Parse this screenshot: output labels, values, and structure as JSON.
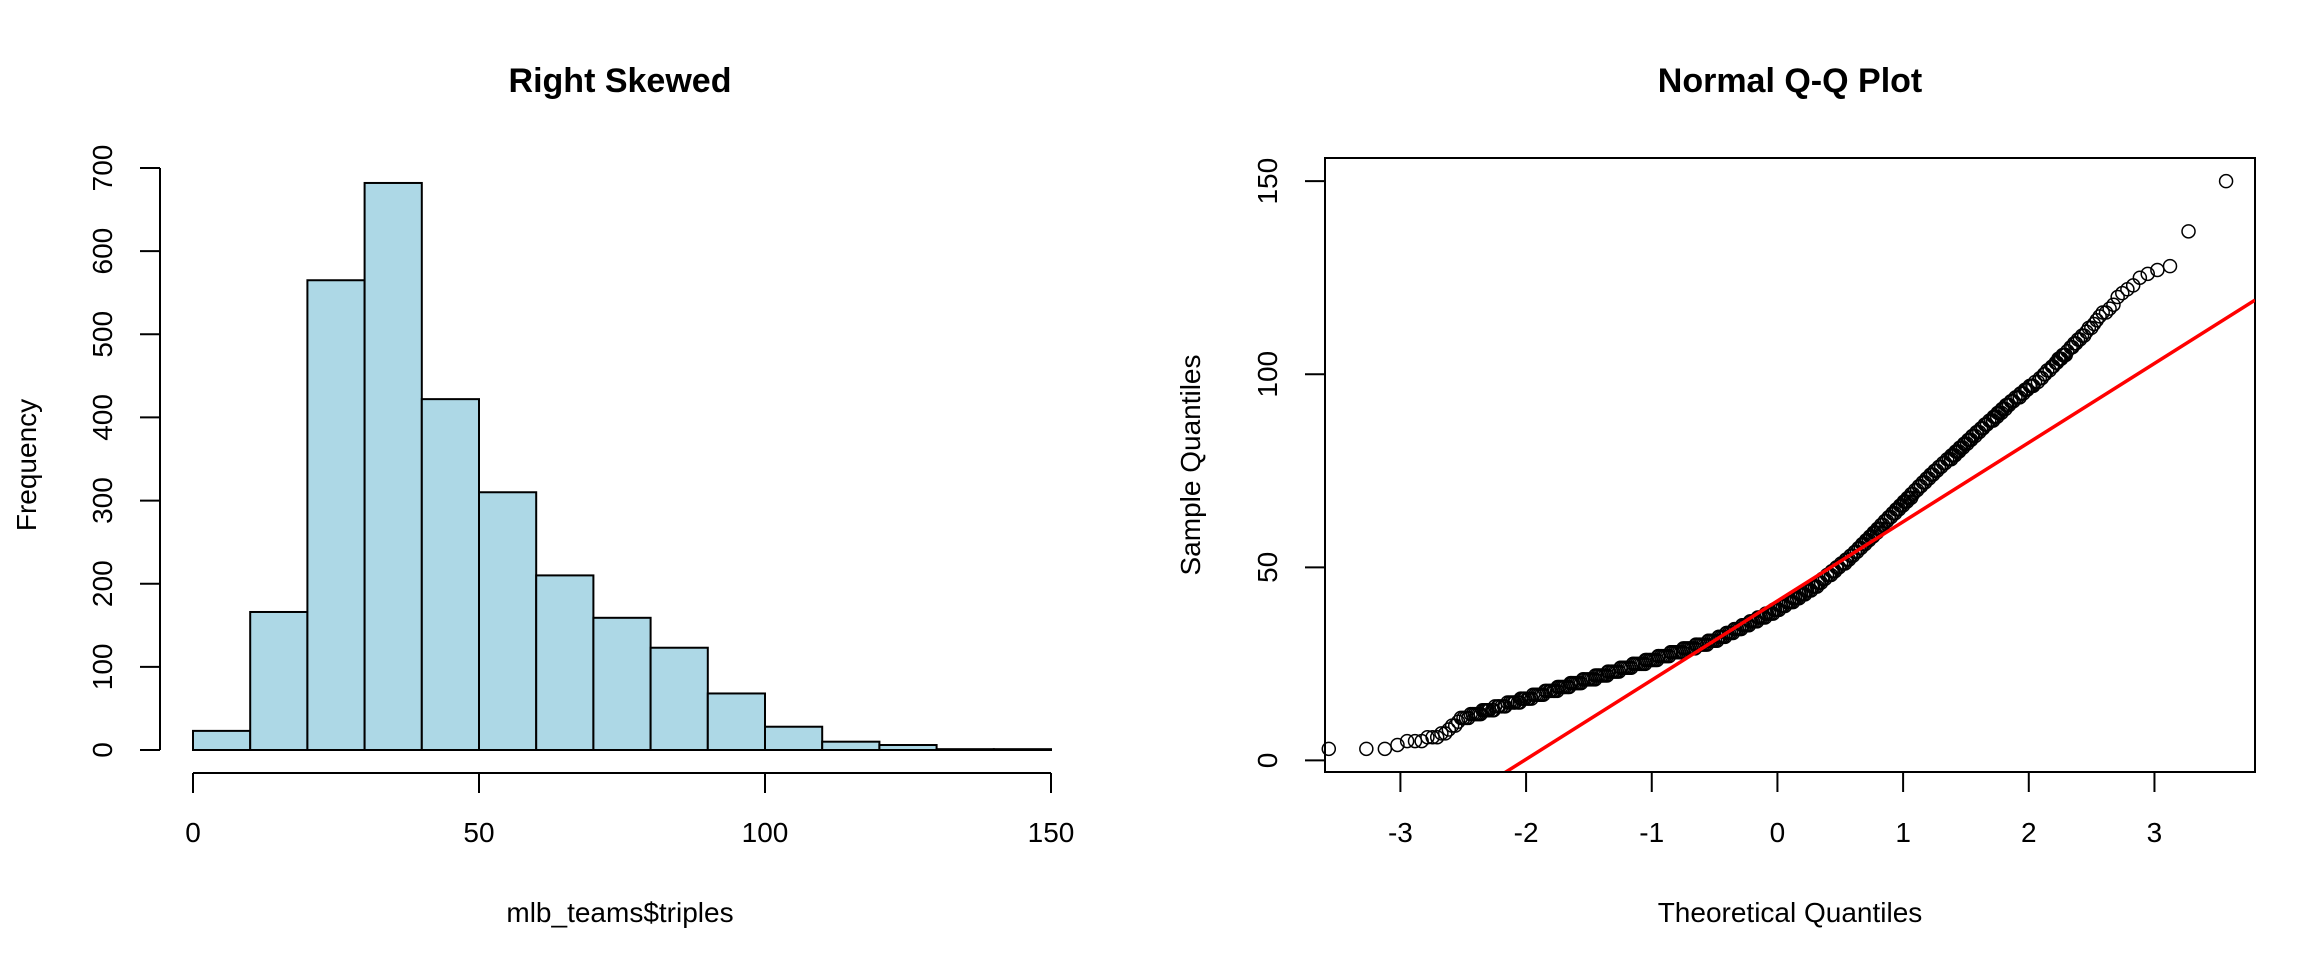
{
  "chart_data": [
    {
      "type": "bar",
      "title": "Right Skewed",
      "xlabel": "mlb_teams$triples",
      "ylabel": "Frequency",
      "bin_edges": [
        0,
        10,
        20,
        30,
        40,
        50,
        60,
        70,
        80,
        90,
        100,
        110,
        120,
        130,
        140,
        150
      ],
      "values": [
        23,
        166,
        565,
        682,
        422,
        310,
        210,
        159,
        123,
        68,
        28,
        10,
        6,
        1,
        1
      ],
      "xlim": [
        0,
        150
      ],
      "ylim": [
        0,
        700
      ],
      "x_ticks": [
        0,
        50,
        100,
        150
      ],
      "y_ticks": [
        0,
        100,
        200,
        300,
        400,
        500,
        600,
        700
      ],
      "bar_fill": "#ADD8E6",
      "bar_stroke": "#000000"
    },
    {
      "type": "scatter",
      "title": "Normal Q-Q Plot",
      "xlabel": "Theoretical Quantiles",
      "ylabel": "Sample Quantiles",
      "xlim": [
        -3.6,
        3.8
      ],
      "ylim": [
        -3,
        156
      ],
      "x_ticks": [
        -3,
        -2,
        -1,
        0,
        1,
        2,
        3
      ],
      "y_ticks": [
        0,
        50,
        100,
        150
      ],
      "n_points": 2800,
      "points_described": [
        [
          -3.55,
          3
        ],
        [
          -3.3,
          3
        ],
        [
          -3.15,
          3
        ],
        [
          -3.05,
          4
        ],
        [
          -2.9,
          5
        ],
        [
          -2.7,
          6
        ],
        [
          -2.5,
          11
        ],
        [
          -2.0,
          16
        ],
        [
          -1.5,
          21
        ],
        [
          -1.0,
          26
        ],
        [
          -0.5,
          31
        ],
        [
          0.0,
          39
        ],
        [
          0.3,
          45
        ],
        [
          0.6,
          53
        ],
        [
          0.9,
          63
        ],
        [
          1.2,
          73
        ],
        [
          1.5,
          82
        ],
        [
          1.8,
          91
        ],
        [
          2.1,
          99
        ],
        [
          2.4,
          109
        ],
        [
          2.6,
          116
        ],
        [
          2.75,
          121
        ],
        [
          2.9,
          125
        ],
        [
          3.05,
          127
        ],
        [
          3.15,
          129
        ],
        [
          3.27,
          137
        ],
        [
          3.55,
          150
        ]
      ],
      "reference_line": {
        "intercept": 41.3,
        "slope": 20.5,
        "color": "#FF0000"
      },
      "point_color": "#000000"
    }
  ]
}
